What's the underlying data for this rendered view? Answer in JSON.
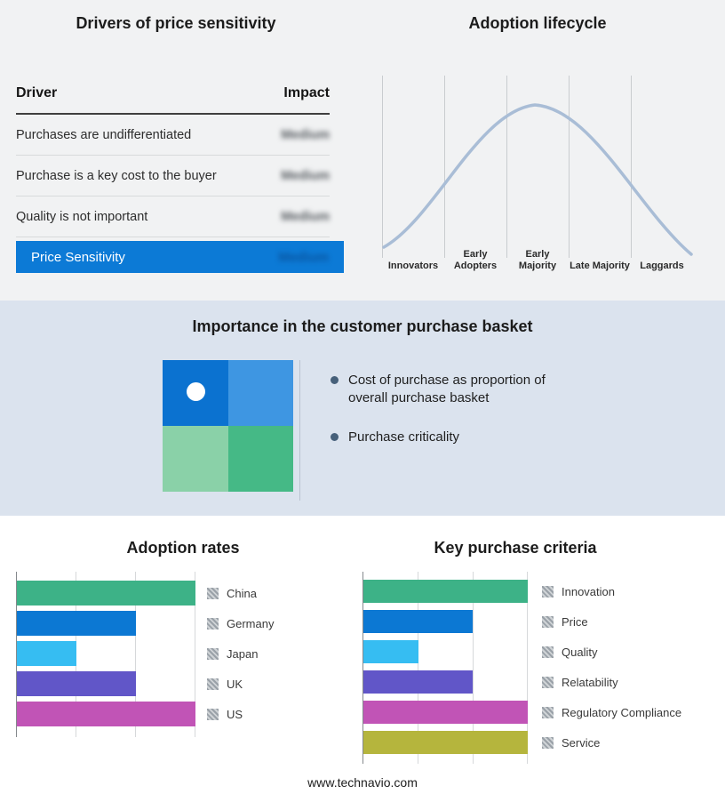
{
  "drivers_panel": {
    "title": "Drivers of price sensitivity",
    "columns": {
      "driver": "Driver",
      "impact": "Impact"
    },
    "rows": [
      {
        "driver": "Purchases are undifferentiated",
        "impact": "Medium"
      },
      {
        "driver": "Purchase is a key cost to the buyer",
        "impact": "Medium"
      },
      {
        "driver": "Quality is not important",
        "impact": "Medium"
      }
    ],
    "summary": {
      "label": "Price Sensitivity",
      "impact": "Medium"
    },
    "accent_color": "#0c7ad6"
  },
  "purchase_basket": {
    "title": "Importance in the customer purchase basket",
    "bullets": [
      "Cost of purchase as proportion of overall purchase basket",
      "Purchase criticality"
    ],
    "quadrant_colors": {
      "top_left": "#0b72d0",
      "top_right": "#3e96e2",
      "bottom_left": "#8ad1a8",
      "bottom_right": "#45b986"
    }
  },
  "chart_data": [
    {
      "id": "adoption-lifecycle",
      "type": "line",
      "title": "Adoption lifecycle",
      "categories": [
        "Innovators",
        "Early Adopters",
        "Early Majority",
        "Late Majority",
        "Laggards"
      ],
      "shape": "bell curve peaking over Early Majority",
      "curve_color": "#a9bdd6",
      "grid": true,
      "legend_position": "none"
    },
    {
      "id": "adoption-rates",
      "type": "bar",
      "orientation": "horizontal",
      "title": "Adoption rates",
      "categories": [
        "China",
        "Germany",
        "Japan",
        "UK",
        "US"
      ],
      "values": [
        3,
        2,
        1,
        2,
        3
      ],
      "xlim": [
        0,
        3
      ],
      "colors": [
        "#3db287",
        "#0c78d3",
        "#36bdf2",
        "#6156c8",
        "#c154b6"
      ],
      "grid": true,
      "legend_position": "right"
    },
    {
      "id": "key-purchase-criteria",
      "type": "bar",
      "orientation": "horizontal",
      "title": "Key purchase criteria",
      "categories": [
        "Innovation",
        "Price",
        "Quality",
        "Relatability",
        "Regulatory Compliance",
        "Service"
      ],
      "values": [
        3,
        2,
        1,
        2,
        3,
        3
      ],
      "xlim": [
        0,
        3
      ],
      "colors": [
        "#3db287",
        "#0c78d3",
        "#36bdf2",
        "#6156c8",
        "#c154b6",
        "#b5b53d"
      ],
      "grid": true,
      "legend_position": "right"
    }
  ],
  "footer": {
    "url_text": "www.technavio.com"
  }
}
